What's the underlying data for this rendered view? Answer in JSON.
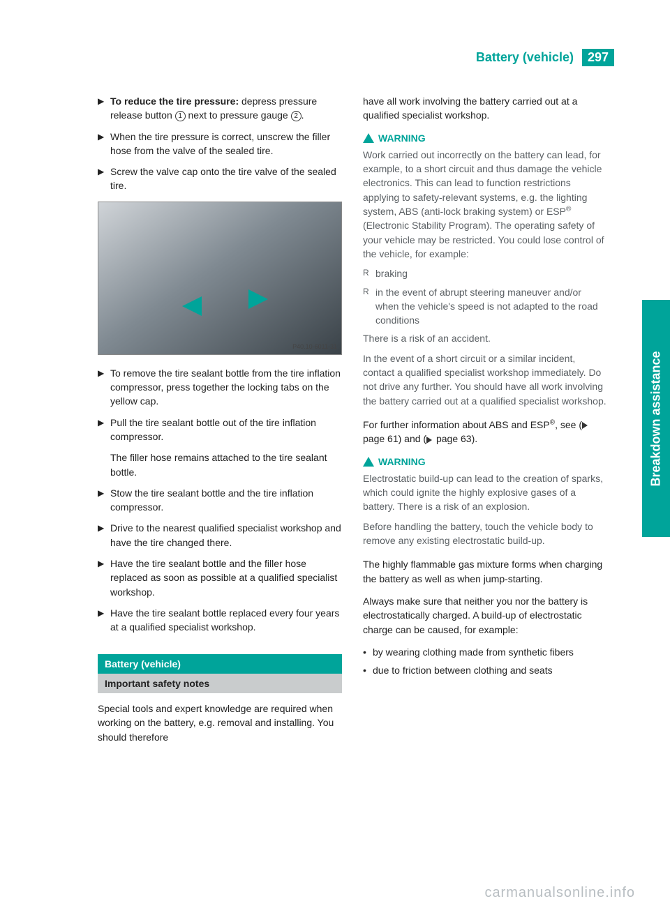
{
  "colors": {
    "accent": "#00a49a",
    "grey_bar": "#c9cccd",
    "warn_text": "#5a5f63"
  },
  "header": {
    "title": "Battery (vehicle)",
    "page": "297"
  },
  "side_tab": "Breakdown assistance",
  "left": {
    "steps_a": [
      {
        "pre": "To reduce the tire pressure: ",
        "rest": "depress pressure release button ",
        "c": "1",
        "after": " next to pressure gauge ",
        "c2": "2",
        "end": "."
      },
      {
        "text": "When the tire pressure is correct, unscrew the filler hose from the valve of the sealed tire."
      },
      {
        "text": "Screw the valve cap onto the tire valve of the sealed tire."
      }
    ],
    "figure_id": "P40.10-6011-31",
    "steps_b": [
      "To remove the tire sealant bottle from the tire inflation compressor, press together the locking tabs on the yellow cap.",
      "Pull the tire sealant bottle out of the tire inflation compressor."
    ],
    "note_b": "The filler hose remains attached to the tire sealant bottle.",
    "steps_c": [
      "Stow the tire sealant bottle and the tire inflation compressor.",
      "Drive to the nearest qualified specialist workshop and have the tire changed there.",
      "Have the tire sealant bottle and the filler hose replaced as soon as possible at a qualified specialist workshop.",
      "Have the tire sealant bottle replaced every four years at a qualified specialist workshop."
    ],
    "section": "Battery (vehicle)",
    "subsection": "Important safety notes",
    "intro": "Special tools and expert knowledge are required when working on the battery, e.g. removal and installing. You should therefore"
  },
  "right": {
    "intro_cont": "have all work involving the battery carried out at a qualified specialist workshop.",
    "warn_label": "WARNING",
    "warn1_p1": "Work carried out incorrectly on the battery can lead, for example, to a short circuit and thus damage the vehicle electronics. This can lead to function restrictions applying to safety-relevant systems, e.g. the lighting system, ABS (anti-lock braking system) or ESP",
    "warn1_p1b": " (Electronic Stability Program). The operating safety of your vehicle may be restricted. You could lose control of the vehicle, for example:",
    "warn1_bullets": [
      "braking",
      "in the event of abrupt steering maneuver and/or when the vehicle's speed is not adapted to the road conditions"
    ],
    "warn1_p2": "There is a risk of an accident.",
    "warn1_p3": "In the event of a short circuit or a similar incident, contact a qualified specialist workshop immediately. Do not drive any further. You should have all work involving the battery carried out at a qualified specialist workshop.",
    "ref_a": "For further information about ABS and ESP",
    "ref_b": ", see (",
    "ref_p1": " page 61) and (",
    "ref_p2": " page 63).",
    "warn2_p1": "Electrostatic build-up can lead to the creation of sparks, which could ignite the highly explosive gases of a battery. There is a risk of an explosion.",
    "warn2_p2": "Before handling the battery, touch the vehicle body to remove any existing electrostatic build-up.",
    "p3": "The highly flammable gas mixture forms when charging the battery as well as when jump-starting.",
    "p4": "Always make sure that neither you nor the battery is electrostatically charged. A build-up of electrostatic charge can be caused, for example:",
    "bullets2": [
      "by wearing clothing made from synthetic fibers",
      "due to friction between clothing and seats"
    ]
  },
  "watermark": "carmanualsonline.info"
}
